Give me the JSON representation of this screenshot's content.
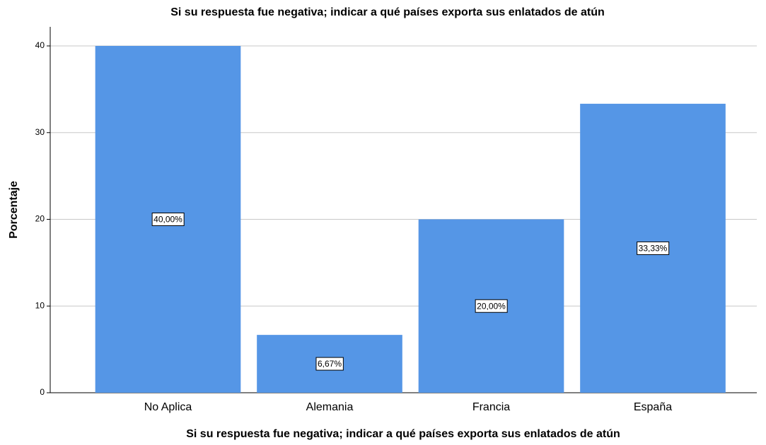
{
  "chart_data": {
    "type": "bar",
    "title": "Si su respuesta fue negativa; indicar a qué países exporta sus enlatados de atún",
    "x_label": "Si su respuesta fue negativa; indicar a qué países exporta sus enlatados de atún",
    "y_label": "Porcentaje",
    "categories": [
      "No Aplica",
      "Alemania",
      "Francia",
      "España"
    ],
    "values": [
      40,
      6.67,
      20,
      33.33
    ],
    "value_labels": [
      "40,00%",
      "6,67%",
      "20,00%",
      "33,33%"
    ],
    "color": "#5596e6",
    "ylim": [
      0,
      42.2
    ],
    "yticks": [
      0,
      10,
      20,
      30,
      40
    ],
    "grid": true
  }
}
